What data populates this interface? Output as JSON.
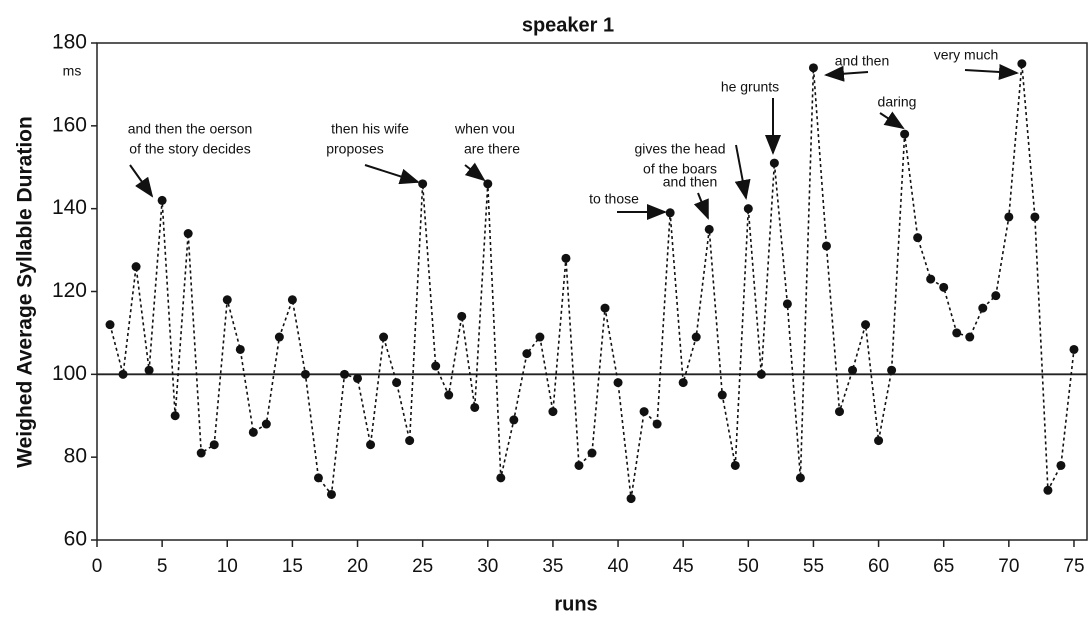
{
  "chart_data": {
    "type": "line",
    "title": "speaker 1",
    "x_label": "runs",
    "y_label": "Weighed Average Syllable Duration",
    "y_unit": "ms",
    "x": [
      1,
      2,
      3,
      4,
      5,
      6,
      7,
      8,
      9,
      10,
      11,
      12,
      13,
      14,
      15,
      16,
      17,
      18,
      19,
      20,
      21,
      22,
      23,
      24,
      25,
      26,
      27,
      28,
      29,
      30,
      31,
      32,
      33,
      34,
      35,
      36,
      37,
      38,
      39,
      40,
      41,
      42,
      43,
      44,
      45,
      46,
      47,
      48,
      49,
      50,
      51,
      52,
      53,
      54,
      55,
      56,
      57,
      58,
      59,
      60,
      61,
      62,
      63,
      64,
      65,
      66,
      67,
      68,
      69,
      70,
      71,
      72,
      73,
      74,
      75
    ],
    "series": [
      {
        "name": "speaker 1",
        "color": "#111111",
        "values": [
          112,
          100,
          126,
          101,
          142,
          90,
          134,
          81,
          83,
          118,
          106,
          86,
          88,
          109,
          118,
          100,
          75,
          71,
          100,
          99,
          83,
          109,
          98,
          84,
          146,
          102,
          95,
          114,
          92,
          146,
          75,
          89,
          105,
          109,
          91,
          128,
          78,
          81,
          116,
          98,
          70,
          91,
          88,
          139,
          98,
          109,
          135,
          95,
          78,
          140,
          100,
          151,
          117,
          75,
          174,
          131,
          91,
          101,
          112,
          84,
          101,
          158,
          133,
          123,
          121,
          110,
          109,
          116,
          119,
          138,
          175,
          138,
          72,
          78,
          106
        ]
      }
    ],
    "reference_line": 100,
    "xlim": [
      0,
      76
    ],
    "ylim": [
      60,
      180
    ],
    "xticks": [
      0,
      5,
      10,
      15,
      20,
      25,
      30,
      35,
      40,
      45,
      50,
      55,
      60,
      65,
      70,
      75
    ],
    "yticks": [
      60,
      80,
      100,
      120,
      140,
      160,
      180
    ],
    "annotations": [
      {
        "lines": [
          "and then the oerson",
          "of the story decides"
        ]
      },
      {
        "lines": [
          "then his wife",
          "proposes"
        ]
      },
      {
        "lines": [
          "when vou",
          "are there"
        ]
      },
      {
        "lines": [
          "to those"
        ]
      },
      {
        "lines": [
          "and then"
        ]
      },
      {
        "lines": [
          "gives the head",
          "of the boars"
        ]
      },
      {
        "lines": [
          "he grunts"
        ]
      },
      {
        "lines": [
          "and then"
        ]
      },
      {
        "lines": [
          "daring"
        ]
      },
      {
        "lines": [
          "very much"
        ]
      }
    ]
  }
}
